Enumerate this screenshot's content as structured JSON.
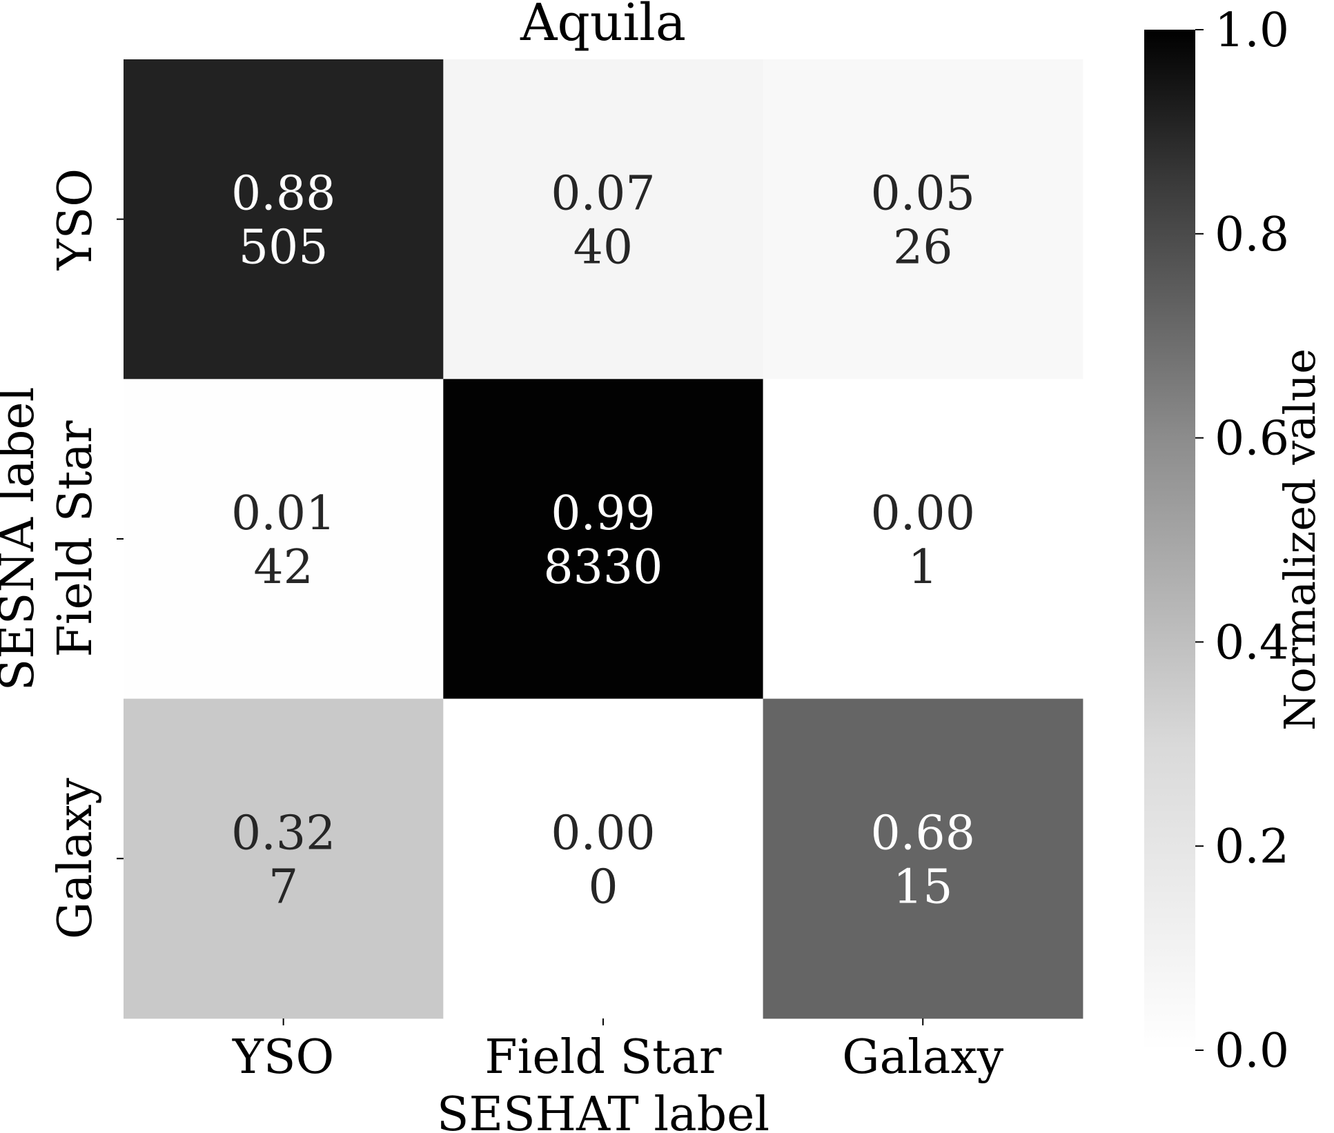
{
  "chart_data": {
    "type": "heatmap",
    "title": "Aquila",
    "xlabel": "SESHAT label",
    "ylabel": "SESNA label",
    "x_categories": [
      "YSO",
      "Field Star",
      "Galaxy"
    ],
    "y_categories": [
      "YSO",
      "Field Star",
      "Galaxy"
    ],
    "normalized": [
      [
        0.88,
        0.07,
        0.05
      ],
      [
        0.01,
        0.99,
        0.0
      ],
      [
        0.32,
        0.0,
        0.68
      ]
    ],
    "normalized_labels": [
      [
        "0.88",
        "0.07",
        "0.05"
      ],
      [
        "0.01",
        "0.99",
        "0.00"
      ],
      [
        "0.32",
        "0.00",
        "0.68"
      ]
    ],
    "counts": [
      [
        505,
        40,
        26
      ],
      [
        42,
        8330,
        1
      ],
      [
        7,
        0,
        15
      ]
    ],
    "cell_colors": [
      [
        "#222222",
        "#f5f5f5",
        "#f8f8f8"
      ],
      [
        "#fefefe",
        "#020202",
        "#ffffff"
      ],
      [
        "#c9c9c9",
        "#ffffff",
        "#656565"
      ]
    ],
    "colormap": "Greys",
    "colorbar": {
      "label": "Normalized value",
      "range": [
        0.0,
        1.0
      ],
      "ticks": [
        "0.0",
        "0.2",
        "0.4",
        "0.6",
        "0.8",
        "1.0"
      ],
      "color_low": "#ffffff",
      "color_high": "#000000"
    },
    "grid": false
  }
}
